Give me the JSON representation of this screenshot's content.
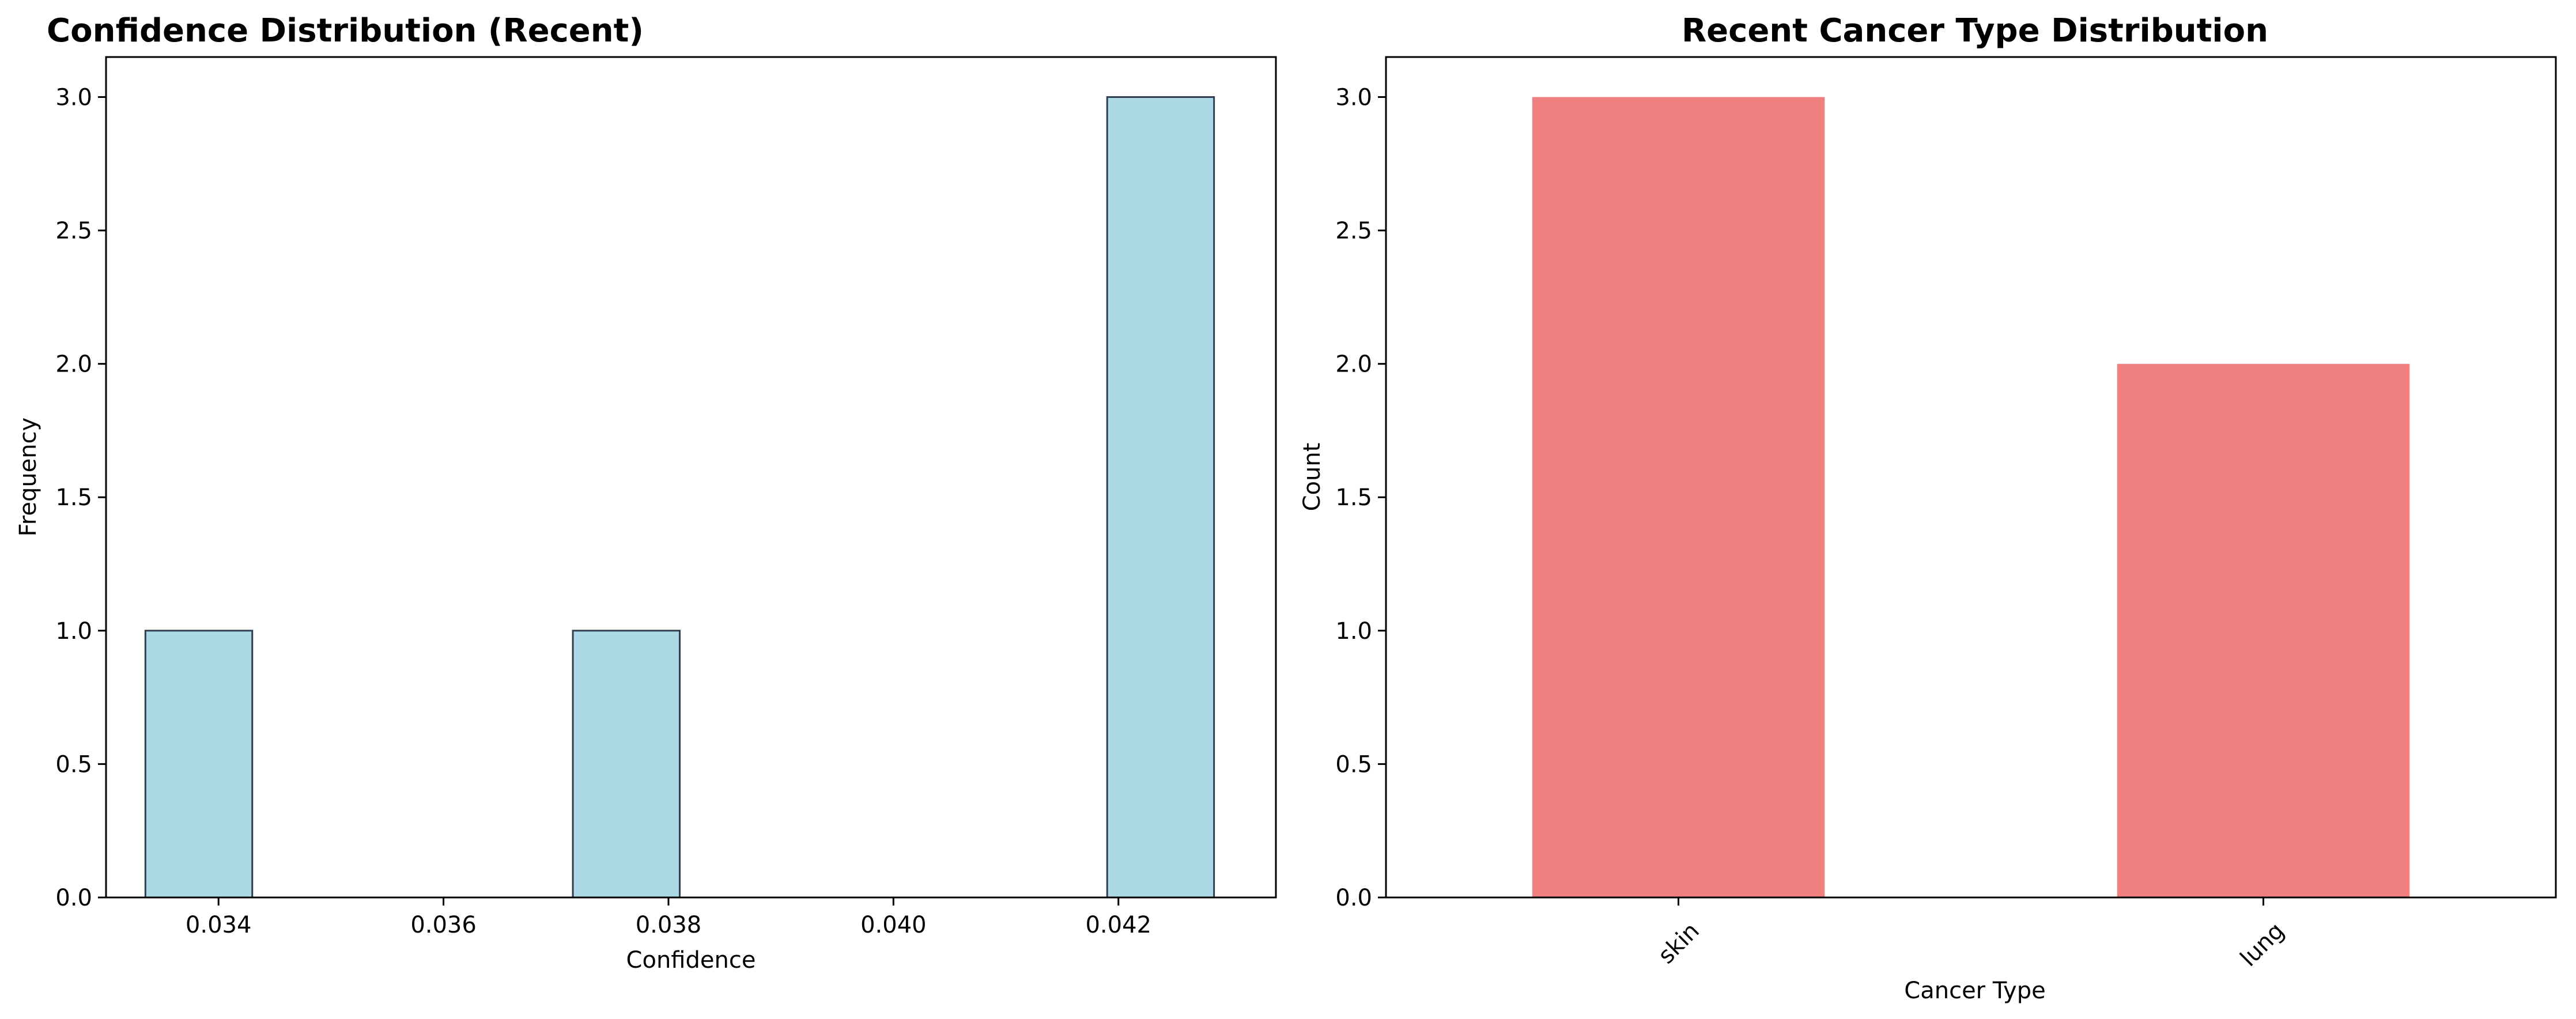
{
  "chart_data": [
    {
      "type": "bar",
      "subtype": "histogram",
      "title": "Confidence Distribution (Recent)",
      "xlabel": "Confidence",
      "ylabel": "Frequency",
      "xlim": [
        0.033,
        0.0434
      ],
      "ylim": [
        0,
        3.15
      ],
      "xticks": [
        0.034,
        0.036,
        0.038,
        0.04,
        0.042
      ],
      "xtick_labels": [
        "0.034",
        "0.036",
        "0.038",
        "0.040",
        "0.042"
      ],
      "yticks": [
        0.0,
        0.5,
        1.0,
        1.5,
        2.0,
        2.5,
        3.0
      ],
      "ytick_labels": [
        "0.0",
        "0.5",
        "1.0",
        "1.5",
        "2.0",
        "2.5",
        "3.0"
      ],
      "bins": [
        {
          "x0": 0.03335,
          "x1": 0.0343,
          "value": 1
        },
        {
          "x0": 0.0343,
          "x1": 0.03525,
          "value": 0
        },
        {
          "x0": 0.03525,
          "x1": 0.0362,
          "value": 0
        },
        {
          "x0": 0.0362,
          "x1": 0.03715,
          "value": 0
        },
        {
          "x0": 0.03715,
          "x1": 0.0381,
          "value": 1
        },
        {
          "x0": 0.0381,
          "x1": 0.03905,
          "value": 0
        },
        {
          "x0": 0.03905,
          "x1": 0.04,
          "value": 0
        },
        {
          "x0": 0.04,
          "x1": 0.04095,
          "value": 0
        },
        {
          "x0": 0.04095,
          "x1": 0.0419,
          "value": 0
        },
        {
          "x0": 0.0419,
          "x1": 0.04285,
          "value": 3
        }
      ],
      "bar_color": "#add8e6",
      "edge_color": "#2f3f4f",
      "grid": false
    },
    {
      "type": "bar",
      "title": "Recent Cancer Type Distribution",
      "xlabel": "Cancer Type",
      "ylabel": "Count",
      "categories": [
        "skin",
        "lung"
      ],
      "values": [
        3,
        2
      ],
      "ylim": [
        0,
        3.15
      ],
      "yticks": [
        0.0,
        0.5,
        1.0,
        1.5,
        2.0,
        2.5,
        3.0
      ],
      "ytick_labels": [
        "0.0",
        "0.5",
        "1.0",
        "1.5",
        "2.0",
        "2.5",
        "3.0"
      ],
      "xtick_rotation": 45,
      "bar_color": "#f08080",
      "grid": false
    }
  ]
}
